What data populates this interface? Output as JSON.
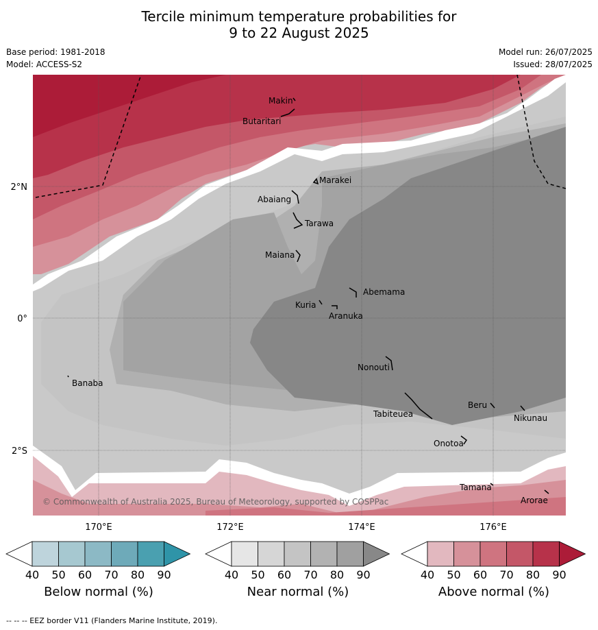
{
  "title_line1": "Tercile minimum temperature probabilities for",
  "title_line2": "9 to 22 August 2025",
  "meta": {
    "base_period": "Base period: 1981-2018",
    "model": "Model: ACCESS-S2",
    "model_run": "Model run: 26/07/2025",
    "issued": "Issued: 28/07/2025"
  },
  "axes": {
    "lat_ticks": [
      "2°N",
      "0°",
      "2°S"
    ],
    "lon_ticks": [
      "170°E",
      "172°E",
      "174°E",
      "176°E"
    ]
  },
  "places": [
    {
      "name": "Makin"
    },
    {
      "name": "Butaritari"
    },
    {
      "name": "Marakei"
    },
    {
      "name": "Abaiang"
    },
    {
      "name": "Tarawa"
    },
    {
      "name": "Maiana"
    },
    {
      "name": "Abemama"
    },
    {
      "name": "Kuria"
    },
    {
      "name": "Aranuka"
    },
    {
      "name": "Nonouti"
    },
    {
      "name": "Banaba"
    },
    {
      "name": "Beru"
    },
    {
      "name": "Nikunau"
    },
    {
      "name": "Tabiteuea"
    },
    {
      "name": "Onotoa"
    },
    {
      "name": "Tamana"
    },
    {
      "name": "Arorae"
    }
  ],
  "copyright": "© Commonwealth of Australia 2025, Bureau of Meteorology, supported by COSPPac",
  "colorbars": [
    {
      "label": "Below normal (%)",
      "ticks": [
        "40",
        "50",
        "60",
        "70",
        "80",
        "90"
      ],
      "colors": [
        "#bed4dc",
        "#a6c8d0",
        "#8cb9c5",
        "#6eaab9",
        "#4aa0b0",
        "#2f94a8"
      ]
    },
    {
      "label": "Near normal (%)",
      "ticks": [
        "40",
        "50",
        "60",
        "70",
        "80",
        "90"
      ],
      "colors": [
        "#e6e6e6",
        "#d6d6d6",
        "#c4c4c4",
        "#b2b2b2",
        "#a0a0a0",
        "#888888"
      ]
    },
    {
      "label": "Above normal (%)",
      "ticks": [
        "40",
        "50",
        "60",
        "70",
        "80",
        "90"
      ],
      "colors": [
        "#e2b8bf",
        "#d6919a",
        "#cf7480",
        "#c45768",
        "#b7324a",
        "#ac1c38"
      ]
    }
  ],
  "footer": "-- -- -- EEZ border V11 (Flanders Marine Institute, 2019)."
}
